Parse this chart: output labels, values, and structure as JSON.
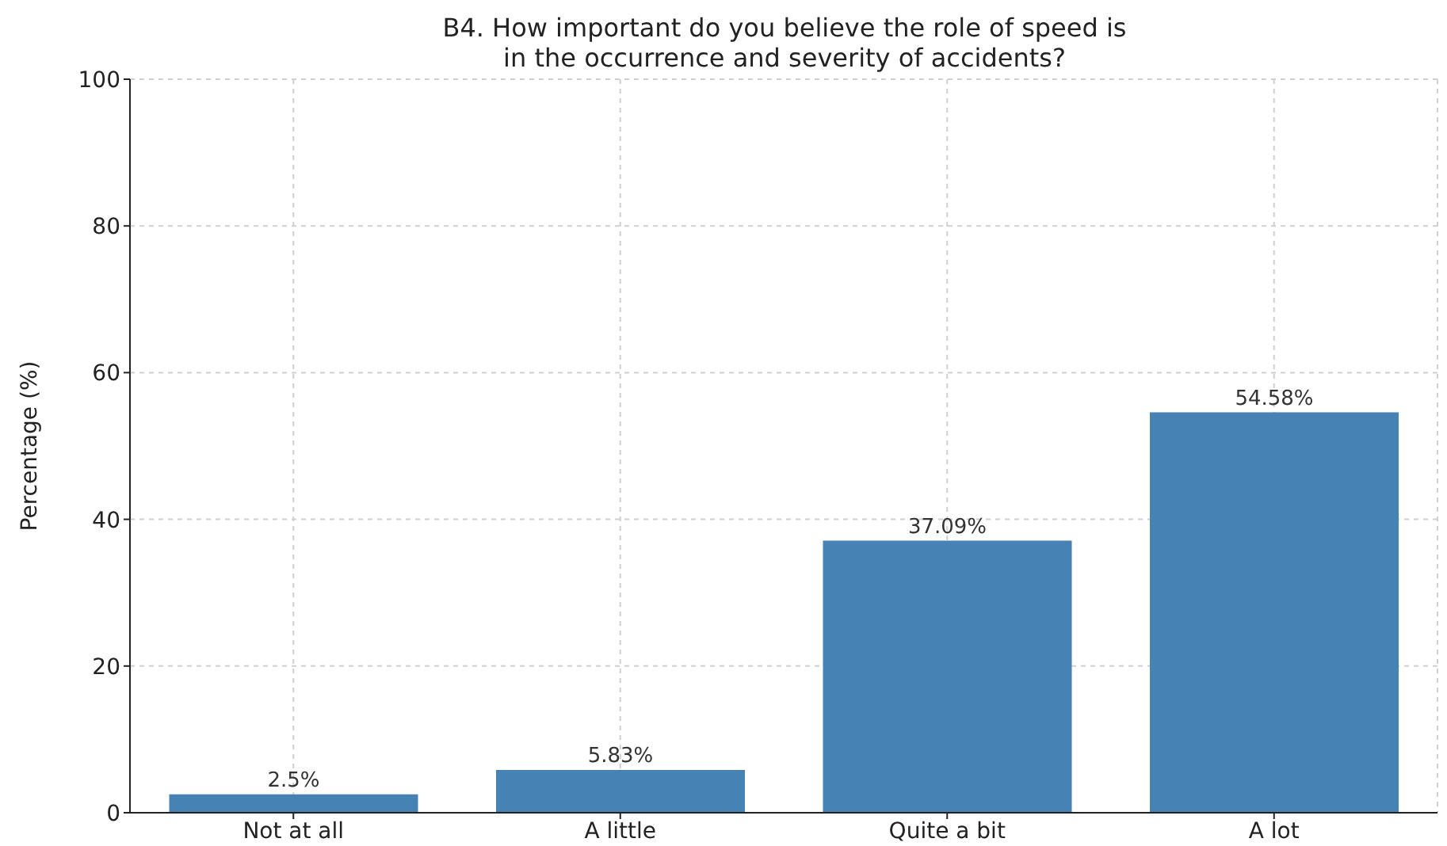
{
  "chart_data": {
    "type": "bar",
    "title": "B4. How important do you believe the role of speed is\nin the occurrence and severity of accidents?",
    "ylabel": "Percentage (%)",
    "categories": [
      "Not at all",
      "A little",
      "Quite a bit",
      "A lot"
    ],
    "values": [
      2.5,
      5.83,
      37.09,
      54.58
    ],
    "value_labels": [
      "2.5%",
      "5.83%",
      "37.09%",
      "54.58%"
    ],
    "color": "#4682b4",
    "ylim": [
      0,
      100
    ],
    "yticks": [
      0,
      20,
      40,
      60,
      80,
      100
    ],
    "grid": true
  }
}
